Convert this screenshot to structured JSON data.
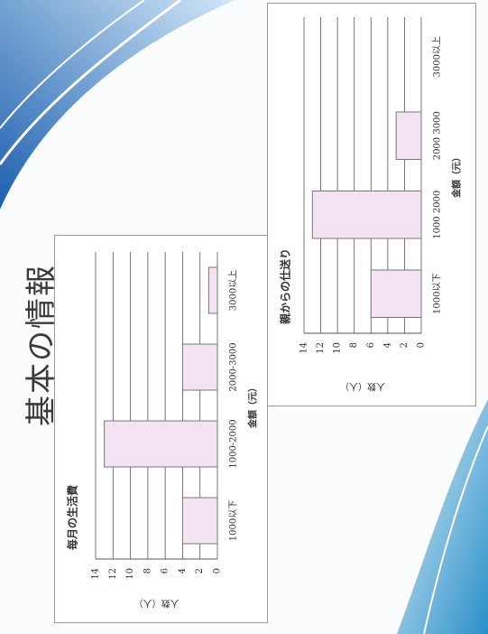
{
  "slide_title": "基本の情報",
  "chart_data": [
    {
      "type": "bar",
      "title": "毎月の生活費",
      "x_label": "金額（元）",
      "y_label": "人数（人）",
      "categories": [
        "1000以下",
        "1000-2000",
        "2000-3000",
        "3000以上"
      ],
      "values": [
        4,
        13,
        4,
        1
      ],
      "color": "#f3e3f3",
      "ylim": [
        0,
        14
      ],
      "yticks": [
        0,
        2,
        4,
        6,
        8,
        10,
        12,
        14
      ],
      "grid": true
    },
    {
      "type": "bar",
      "title": "親からの仕送り",
      "x_label": "金額（元）",
      "y_label": "人数（人）",
      "categories": [
        "1000以下",
        "1000 2000",
        "2000 3000",
        "3000以上"
      ],
      "values": [
        6,
        13,
        3,
        0
      ],
      "color": "#f3e3f3",
      "ylim": [
        0,
        14
      ],
      "yticks": [
        0,
        2,
        4,
        6,
        8,
        10,
        12,
        14
      ],
      "grid": true
    }
  ]
}
